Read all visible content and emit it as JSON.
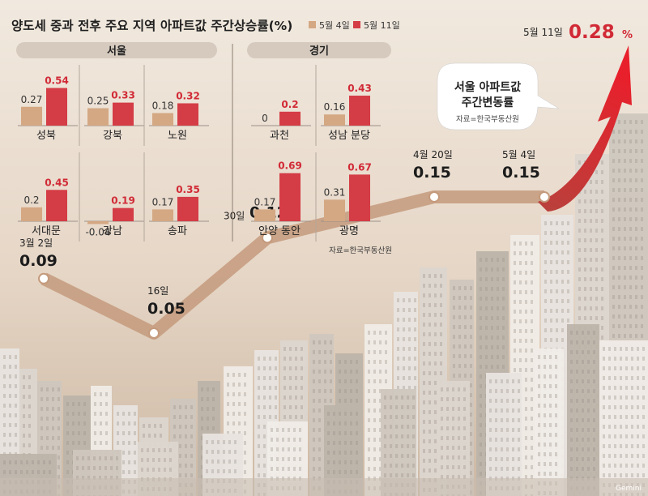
{
  "colors": {
    "bg_top": "#efe6dc",
    "bg_bottom": "#d9c7b4",
    "tan": "#d4a883",
    "red": "#d43c46",
    "red_text": "#d12a36",
    "header_pill": "#d6cabe",
    "line_band": "#c7a386",
    "arrow_red": "#e0202c",
    "dark": "#222222"
  },
  "chart_data": [
    {
      "type": "bar",
      "title": "양도세 중과 전후 주요 지역 아파트값 주간상승률(%)",
      "legend": [
        "5월 4일",
        "5월 11일"
      ],
      "legend_position": "top",
      "panels": [
        {
          "header": "서울",
          "categories": [
            "성북",
            "강북",
            "노원",
            "서대문",
            "강남",
            "송파"
          ],
          "series": [
            {
              "name": "5월 4일",
              "values": [
                0.27,
                0.25,
                0.18,
                0.2,
                -0.04,
                0.17
              ],
              "labels": [
                "0.27",
                "0.25",
                "0.18",
                "0.2",
                "-0.04",
                "0.17"
              ]
            },
            {
              "name": "5월 11일",
              "values": [
                0.54,
                0.33,
                0.32,
                0.45,
                0.19,
                0.35
              ],
              "labels": [
                "0.54",
                "0.33",
                "0.32",
                "0.45",
                "0.19",
                "0.35"
              ]
            }
          ]
        },
        {
          "header": "경기",
          "categories": [
            "과천",
            "성남 분당",
            "안양 동안",
            "광명"
          ],
          "series": [
            {
              "name": "5월 4일",
              "values": [
                0,
                0.16,
                0.17,
                0.31
              ],
              "labels": [
                "0",
                "0.16",
                "0.17",
                "0.31"
              ]
            },
            {
              "name": "5월 11일",
              "values": [
                0.2,
                0.43,
                0.69,
                0.67
              ],
              "labels": [
                "0.2",
                "0.43",
                "0.69",
                "0.67"
              ]
            }
          ]
        }
      ],
      "source": "자료=한국부동산원"
    },
    {
      "type": "line",
      "title": "서울 아파트값 주간변동률",
      "source": "자료=한국부동산원",
      "x": [
        "3월 2일",
        "16일",
        "30일",
        "4월 20일",
        "5월 4일",
        "5월 11일"
      ],
      "y": [
        0.09,
        0.05,
        0.12,
        0.15,
        0.15,
        0.28
      ],
      "point_labels": [
        "3월 2일",
        "16일",
        "30일",
        "4월 20일",
        "5월 4일",
        "5월 11일"
      ],
      "value_labels": [
        "0.09",
        "0.05",
        "0.12",
        "0.15",
        "0.15",
        "0.28"
      ],
      "unit": "%"
    }
  ],
  "watermark": "Gemini"
}
